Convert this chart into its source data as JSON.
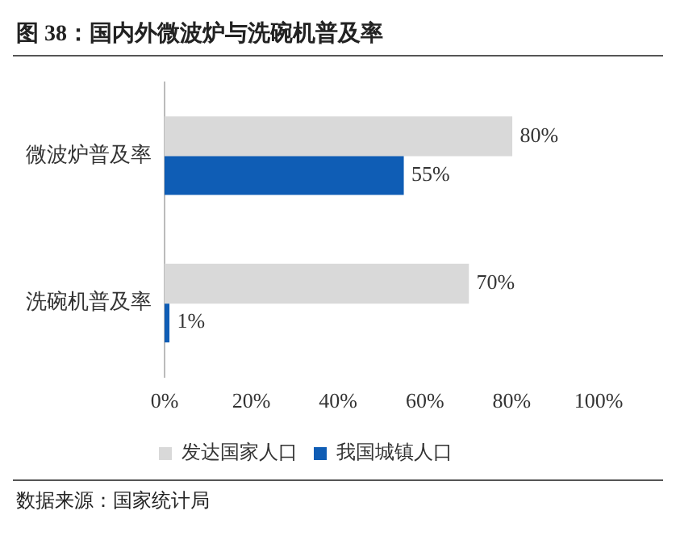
{
  "chart_data": {
    "type": "bar",
    "orientation": "horizontal",
    "title": "图 38：国内外微波炉与洗碗机普及率",
    "categories": [
      "微波炉普及率",
      "洗碗机普及率"
    ],
    "series": [
      {
        "name": "发达国家人口",
        "color": "#d9d9d9",
        "values": [
          80,
          70
        ],
        "value_labels": [
          "80%",
          "70%"
        ]
      },
      {
        "name": "我国城镇人口",
        "color": "#0f5db5",
        "values": [
          55,
          1
        ],
        "value_labels": [
          "55%",
          "1%"
        ]
      }
    ],
    "xlim": [
      0,
      100
    ],
    "xticks": [
      {
        "value": 0,
        "label": "0%"
      },
      {
        "value": 20,
        "label": "20%"
      },
      {
        "value": 40,
        "label": "40%"
      },
      {
        "value": 60,
        "label": "60%"
      },
      {
        "value": 80,
        "label": "80%"
      },
      {
        "value": 100,
        "label": "100%"
      }
    ],
    "grid": false,
    "legend": "bottom",
    "annotations": [
      "数据来源：国家统计局"
    ]
  }
}
